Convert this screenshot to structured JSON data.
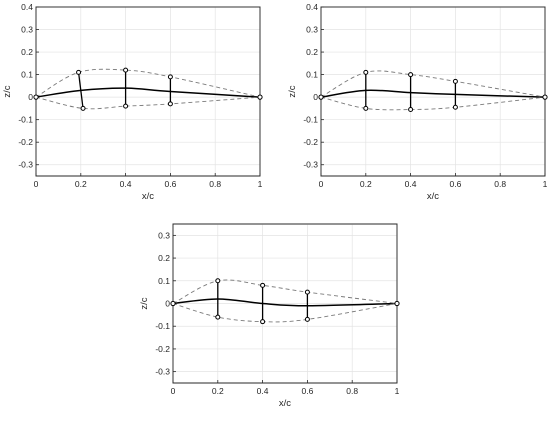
{
  "chart_data": [
    {
      "type": "line",
      "xlabel": "x/c",
      "ylabel": "z/c",
      "xlim": [
        0,
        1
      ],
      "ylim": [
        -0.35,
        0.4
      ],
      "grid": true,
      "x_ticks": [
        "0",
        "0.2",
        "0.4",
        "0.6",
        "0.8",
        "1"
      ],
      "y_ticks": [
        "-0.3",
        "-0.2",
        "-0.1",
        "0",
        "0.1",
        "0.2",
        "0.3",
        "0.4"
      ],
      "series": [
        {
          "role": "camber",
          "style": "solid",
          "x": [
            0,
            0.2,
            0.4,
            0.6,
            1
          ],
          "y": [
            0,
            0.03,
            0.04,
            0.025,
            0
          ]
        },
        {
          "role": "upper",
          "style": "dashed",
          "x": [
            0,
            0.19,
            0.4,
            0.6,
            1
          ],
          "y": [
            0,
            0.11,
            0.12,
            0.09,
            0
          ]
        },
        {
          "role": "lower",
          "style": "dashed",
          "x": [
            0,
            0.21,
            0.4,
            0.6,
            1
          ],
          "y": [
            0,
            -0.05,
            -0.04,
            -0.03,
            0
          ]
        }
      ],
      "control_points": [
        {
          "x_top": 0.19,
          "top": 0.11,
          "x_bot": 0.21,
          "bot": -0.05
        },
        {
          "x_top": 0.4,
          "top": 0.12,
          "x_bot": 0.4,
          "bot": -0.04
        },
        {
          "x_top": 0.6,
          "top": 0.09,
          "x_bot": 0.6,
          "bot": -0.03
        }
      ],
      "endpoints": [
        {
          "x": 0,
          "y": 0
        },
        {
          "x": 1,
          "y": 0
        }
      ]
    },
    {
      "type": "line",
      "xlabel": "x/c",
      "ylabel": "z/c",
      "xlim": [
        0,
        1
      ],
      "ylim": [
        -0.35,
        0.4
      ],
      "grid": true,
      "x_ticks": [
        "0",
        "0.2",
        "0.4",
        "0.6",
        "0.8",
        "1"
      ],
      "y_ticks": [
        "-0.3",
        "-0.2",
        "-0.1",
        "0",
        "0.1",
        "0.2",
        "0.3",
        "0.4"
      ],
      "series": [
        {
          "role": "camber",
          "style": "solid",
          "x": [
            0,
            0.2,
            0.4,
            0.6,
            1
          ],
          "y": [
            0,
            0.03,
            0.02,
            0.012,
            0
          ]
        },
        {
          "role": "upper",
          "style": "dashed",
          "x": [
            0,
            0.2,
            0.4,
            0.6,
            1
          ],
          "y": [
            0,
            0.11,
            0.1,
            0.07,
            0
          ]
        },
        {
          "role": "lower",
          "style": "dashed",
          "x": [
            0,
            0.2,
            0.4,
            0.6,
            1
          ],
          "y": [
            0,
            -0.05,
            -0.055,
            -0.045,
            0
          ]
        }
      ],
      "control_points": [
        {
          "x_top": 0.2,
          "top": 0.11,
          "x_bot": 0.2,
          "bot": -0.05
        },
        {
          "x_top": 0.4,
          "top": 0.1,
          "x_bot": 0.4,
          "bot": -0.055
        },
        {
          "x_top": 0.6,
          "top": 0.07,
          "x_bot": 0.6,
          "bot": -0.045
        }
      ],
      "endpoints": [
        {
          "x": 0,
          "y": 0
        },
        {
          "x": 1,
          "y": 0
        }
      ]
    },
    {
      "type": "line",
      "xlabel": "x/c",
      "ylabel": "z/c",
      "xlim": [
        0,
        1
      ],
      "ylim": [
        -0.35,
        0.35
      ],
      "grid": true,
      "x_ticks": [
        "0",
        "0.2",
        "0.4",
        "0.6",
        "0.8",
        "1"
      ],
      "y_ticks": [
        "-0.3",
        "-0.2",
        "-0.1",
        "0",
        "0.1",
        "0.2",
        "0.3"
      ],
      "series": [
        {
          "role": "camber",
          "style": "solid",
          "x": [
            0,
            0.2,
            0.4,
            0.6,
            1
          ],
          "y": [
            0,
            0.02,
            0,
            -0.01,
            0
          ]
        },
        {
          "role": "upper",
          "style": "dashed",
          "x": [
            0,
            0.2,
            0.4,
            0.6,
            1
          ],
          "y": [
            0,
            0.1,
            0.08,
            0.05,
            0
          ]
        },
        {
          "role": "lower",
          "style": "dashed",
          "x": [
            0,
            0.2,
            0.4,
            0.6,
            1
          ],
          "y": [
            0,
            -0.06,
            -0.08,
            -0.07,
            0
          ]
        }
      ],
      "control_points": [
        {
          "x_top": 0.2,
          "top": 0.1,
          "x_bot": 0.2,
          "bot": -0.06
        },
        {
          "x_top": 0.4,
          "top": 0.08,
          "x_bot": 0.4,
          "bot": -0.08
        },
        {
          "x_top": 0.6,
          "top": 0.05,
          "x_bot": 0.6,
          "bot": -0.07
        }
      ],
      "endpoints": [
        {
          "x": 0,
          "y": 0
        },
        {
          "x": 1,
          "y": 0
        }
      ]
    }
  ]
}
